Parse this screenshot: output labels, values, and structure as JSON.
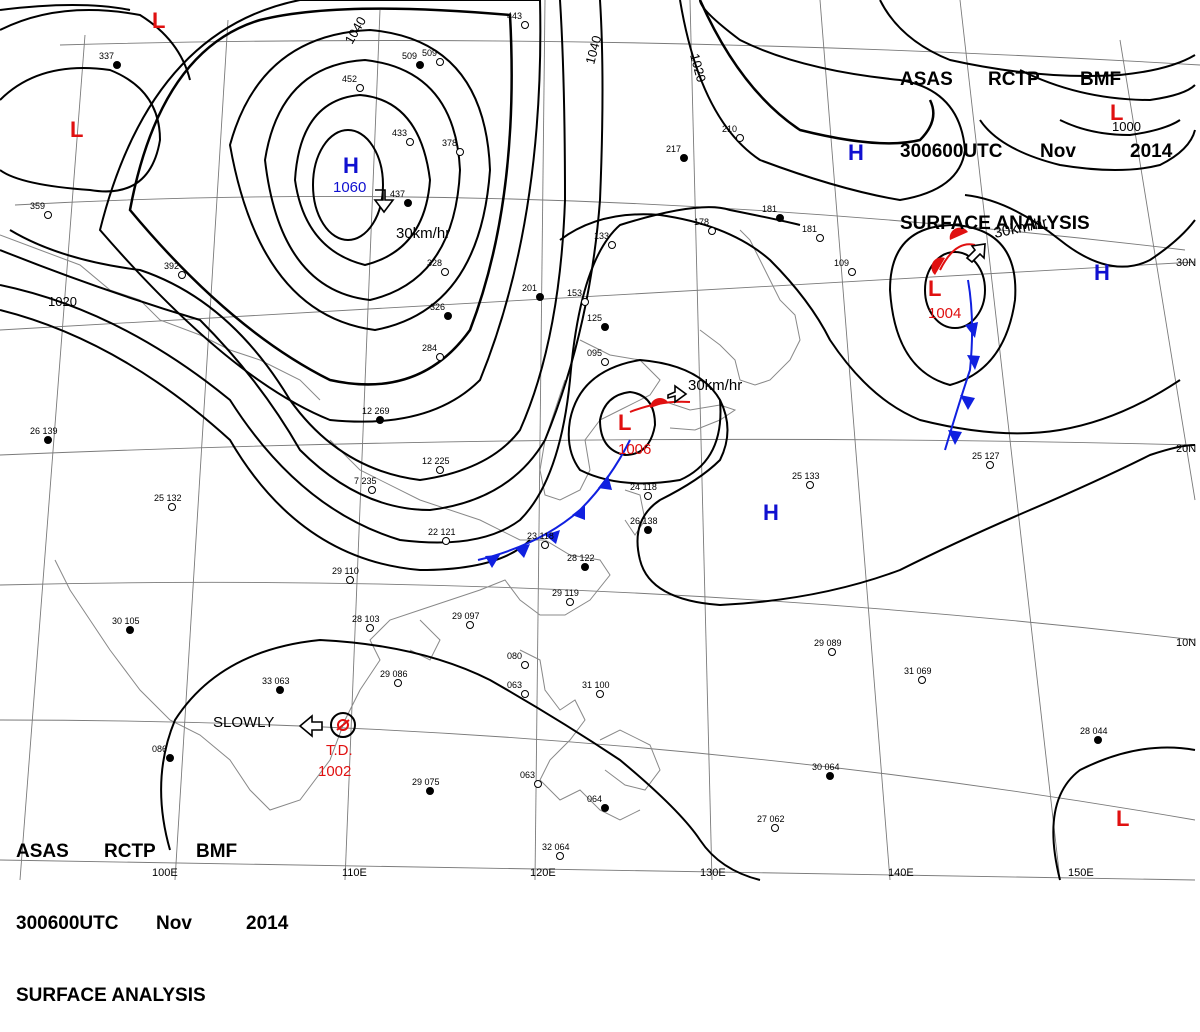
{
  "header": {
    "line1": [
      "ASAS",
      "RCTP",
      "BMF"
    ],
    "line2": [
      "300600UTC",
      "Nov",
      "2014"
    ],
    "line3": "SURFACE ANALYSIS"
  },
  "isobar_labels": [
    "1040",
    "1040",
    "1020",
    "1020",
    "1000"
  ],
  "highs": [
    {
      "symbol": "H",
      "value": "1060",
      "color": "#1010d0"
    },
    {
      "symbol": "H",
      "value": "",
      "color": "#1010d0"
    },
    {
      "symbol": "H",
      "value": "",
      "color": "#1010d0"
    },
    {
      "symbol": "H",
      "value": "",
      "color": "#1010d0"
    }
  ],
  "lows": [
    {
      "symbol": "L",
      "value": "",
      "color": "#e01010"
    },
    {
      "symbol": "L",
      "value": "",
      "color": "#e01010"
    },
    {
      "symbol": "L",
      "value": "",
      "color": "#e01010"
    },
    {
      "symbol": "L",
      "value": "1006",
      "color": "#e01010"
    },
    {
      "symbol": "L",
      "value": "1004",
      "color": "#e01010"
    },
    {
      "symbol": "L",
      "value": "",
      "color": "#e01010"
    }
  ],
  "tropical_depression": {
    "label": "T.D.",
    "value": "1002",
    "motion": "SLOWLY"
  },
  "motion_labels": [
    "30km/hr",
    "30km/hr",
    "30km/hr"
  ],
  "lat_labels": [
    "30N",
    "20N",
    "10N"
  ],
  "lon_labels": [
    "100E",
    "110E",
    "120E",
    "130E",
    "140E",
    "150E"
  ],
  "station_plots": [
    "26 139",
    "25 132",
    "29 110",
    "30 105",
    "29 097",
    "28 103",
    "33 063",
    "29 086",
    "31 100",
    "29 075",
    "32 064",
    "27 062",
    "30 064",
    "29 089",
    "31 069",
    "28 044",
    "22 121",
    "23 118",
    "28 122",
    "29 119",
    "24 118",
    "26 138",
    "25 133",
    "25 127",
    "12 269",
    "12 225",
    "7 235",
    "201",
    "153",
    "133",
    "125",
    "095",
    "284",
    "326",
    "328",
    "378",
    "217",
    "210",
    "178",
    "181",
    "181",
    "109",
    "509",
    "443",
    "452",
    "437",
    "433",
    "509",
    "337",
    "359",
    "392",
    "086",
    "080",
    "063",
    "064",
    "063"
  ],
  "colors": {
    "front_cold": "#1020e0",
    "front_warm": "#e01010",
    "isobar": "#000000",
    "grid": "#7a7a7a"
  }
}
